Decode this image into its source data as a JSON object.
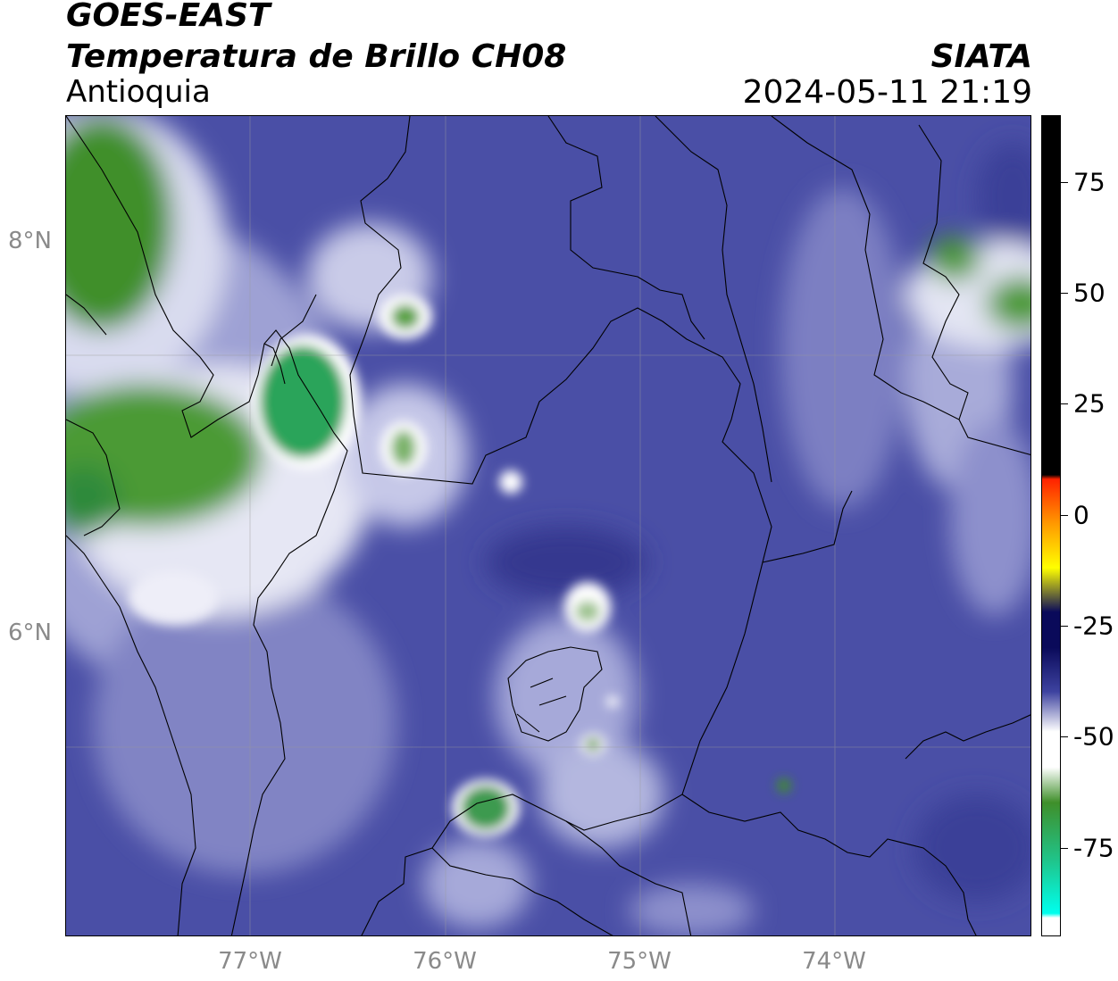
{
  "header": {
    "satellite": "GOES-EAST",
    "product": "Temperatura de Brillo CH08",
    "region": "Antioquia",
    "organization": "SIATA",
    "timestamp": "2024-05-11 21:19"
  },
  "map": {
    "lat_labels": [
      {
        "value": 8,
        "label": "8°N"
      },
      {
        "value": 6,
        "label": "6°N"
      }
    ],
    "lon_labels": [
      {
        "value": -77,
        "label": "77°W"
      },
      {
        "value": -76,
        "label": "76°W"
      },
      {
        "value": -75,
        "label": "75°W"
      },
      {
        "value": -74,
        "label": "74°W"
      }
    ]
  },
  "colorbar": {
    "min": -95,
    "max": 90,
    "ticks": [
      {
        "value": 75,
        "label": "75"
      },
      {
        "value": 50,
        "label": "50"
      },
      {
        "value": 25,
        "label": "25"
      },
      {
        "value": 0,
        "label": "0"
      },
      {
        "value": -25,
        "label": "-25"
      },
      {
        "value": -50,
        "label": "-50"
      },
      {
        "value": -75,
        "label": "-75"
      }
    ],
    "colors": {
      "black": "#000000",
      "red": "#ff2200",
      "orange": "#ff9900",
      "yellow": "#ffff00",
      "dark_navy": "#0a0a5a",
      "blue": "#3e43a0",
      "white": "#ffffff",
      "green": "#3f8f2a",
      "teal": "#20c48a",
      "cyan": "#00ffee"
    }
  }
}
